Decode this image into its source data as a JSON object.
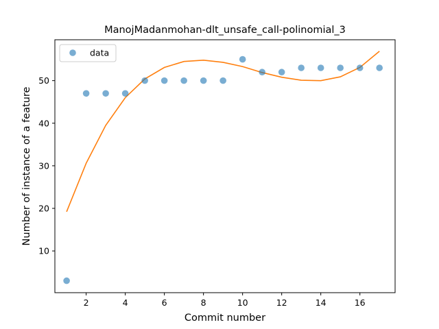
{
  "chart_data": {
    "type": "scatter",
    "title": "ManojMadanmohan-dlt_unsafe_call-polinomial_3",
    "xlabel": "Commit number",
    "ylabel": "Number of instance of a feature",
    "xlim": [
      0.4,
      17.8
    ],
    "ylim": [
      0.2,
      59.6
    ],
    "xticks": [
      2,
      4,
      6,
      8,
      10,
      12,
      14,
      16
    ],
    "yticks": [
      10,
      20,
      30,
      40,
      50
    ],
    "legend": {
      "placement": "top-left",
      "entries": [
        "data"
      ]
    },
    "grid": false,
    "series": [
      {
        "name": "data",
        "kind": "scatter",
        "color": "#1f77b4",
        "x": [
          1,
          2,
          3,
          4,
          5,
          6,
          7,
          8,
          9,
          10,
          11,
          12,
          13,
          14,
          15,
          16,
          17
        ],
        "y": [
          3,
          47,
          47,
          47,
          50,
          50,
          50,
          50,
          50,
          55,
          52,
          52,
          53,
          53,
          53,
          53,
          53
        ]
      },
      {
        "kind": "line",
        "color": "#ff7f0e",
        "x": [
          1,
          2,
          3,
          4,
          5,
          6,
          7,
          8,
          9,
          10,
          11,
          12,
          13,
          14,
          15,
          16,
          17
        ],
        "y": [
          19.2,
          30.6,
          39.5,
          46.0,
          50.4,
          53.1,
          54.5,
          54.8,
          54.3,
          53.3,
          51.9,
          50.8,
          50.1,
          50.0,
          50.9,
          53.1,
          56.9
        ]
      }
    ]
  }
}
